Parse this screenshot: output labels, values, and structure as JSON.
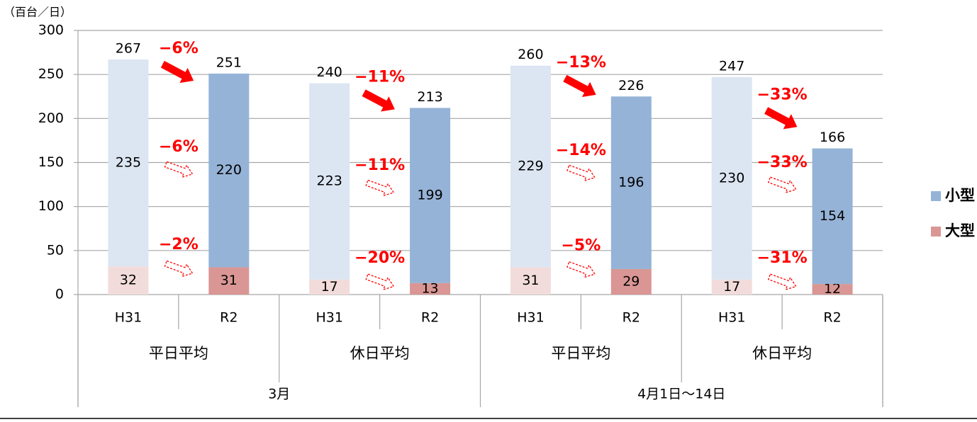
{
  "chart_data": {
    "type": "stacked_bar",
    "unit_label": "（百台／日）",
    "categories": [
      "H31",
      "R2",
      "H31",
      "R2",
      "H31",
      "R2",
      "H31",
      "R2"
    ],
    "groups": [
      "平日平均",
      "休日平均",
      "平日平均",
      "休日平均"
    ],
    "top_groups": [
      "3月",
      "4月1日～14日"
    ],
    "series": [
      {
        "name": "大型",
        "color": "#d99694",
        "light_color": "#f2dcdb",
        "values": [
          32,
          31,
          17,
          13,
          31,
          29,
          17,
          12
        ]
      },
      {
        "name": "小型",
        "color": "#95b3d7",
        "light_color": "#dce6f2",
        "values": [
          235,
          220,
          223,
          199,
          229,
          196,
          230,
          154
        ]
      }
    ],
    "totals": [
      267,
      251,
      240,
      213,
      260,
      226,
      247,
      166
    ],
    "annotations": {
      "total_change": [
        "−6%",
        "−11%",
        "−13%",
        "−33%"
      ],
      "small_change": [
        "−6%",
        "−11%",
        "−14%",
        "−33%"
      ],
      "large_change": [
        "−2%",
        "−20%",
        "−5%",
        "−31%"
      ]
    },
    "ylim": [
      0,
      300
    ],
    "yticks": [
      0,
      50,
      100,
      150,
      200,
      250,
      300
    ],
    "grid": true,
    "legend": "right"
  }
}
